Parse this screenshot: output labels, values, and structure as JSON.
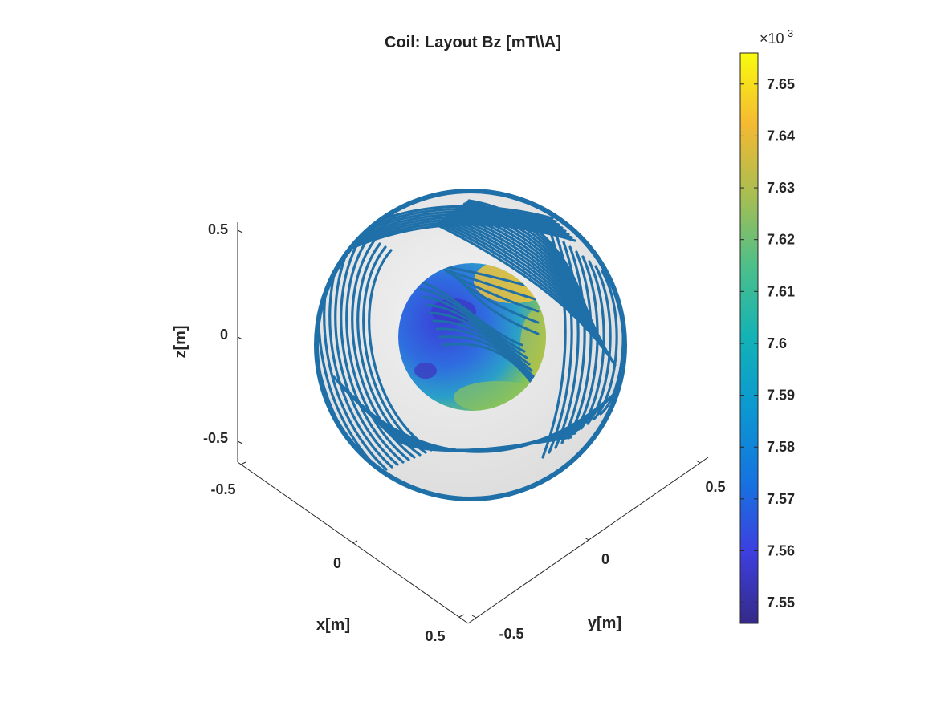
{
  "chart_data": {
    "type": "surface3d",
    "title": "Coil: Layout Bz [mT\\\\A]",
    "xlabel": "x[m]",
    "ylabel": "y[m]",
    "zlabel": "z[m]",
    "xlim": [
      -0.5,
      0.5
    ],
    "ylim": [
      -0.5,
      0.5
    ],
    "zlim": [
      -0.5,
      0.5
    ],
    "x_ticks": [
      "-0.5",
      "0",
      "0.5"
    ],
    "y_ticks": [
      "-0.5",
      "0",
      "0.5"
    ],
    "z_ticks": [
      "-0.5",
      "0",
      "0.5"
    ],
    "grid": false,
    "colormap": "parula",
    "colorbar": {
      "placement": "right",
      "exponent_label": "×10",
      "exponent": "-3",
      "ticks": [
        "7.55",
        "7.56",
        "7.57",
        "7.58",
        "7.59",
        "7.6",
        "7.61",
        "7.62",
        "7.63",
        "7.64",
        "7.65"
      ],
      "tick_values": [
        7.55,
        7.56,
        7.57,
        7.58,
        7.59,
        7.6,
        7.61,
        7.62,
        7.63,
        7.64,
        7.65
      ],
      "range": [
        7.546,
        7.656
      ]
    },
    "layers": [
      "spherical coil surface (light gray)",
      "wire layout (blue lines)",
      "target sphere Bz field (colored)"
    ],
    "colors": {
      "wire": "#1f6fa8",
      "surface": "#e9e9e9"
    }
  }
}
